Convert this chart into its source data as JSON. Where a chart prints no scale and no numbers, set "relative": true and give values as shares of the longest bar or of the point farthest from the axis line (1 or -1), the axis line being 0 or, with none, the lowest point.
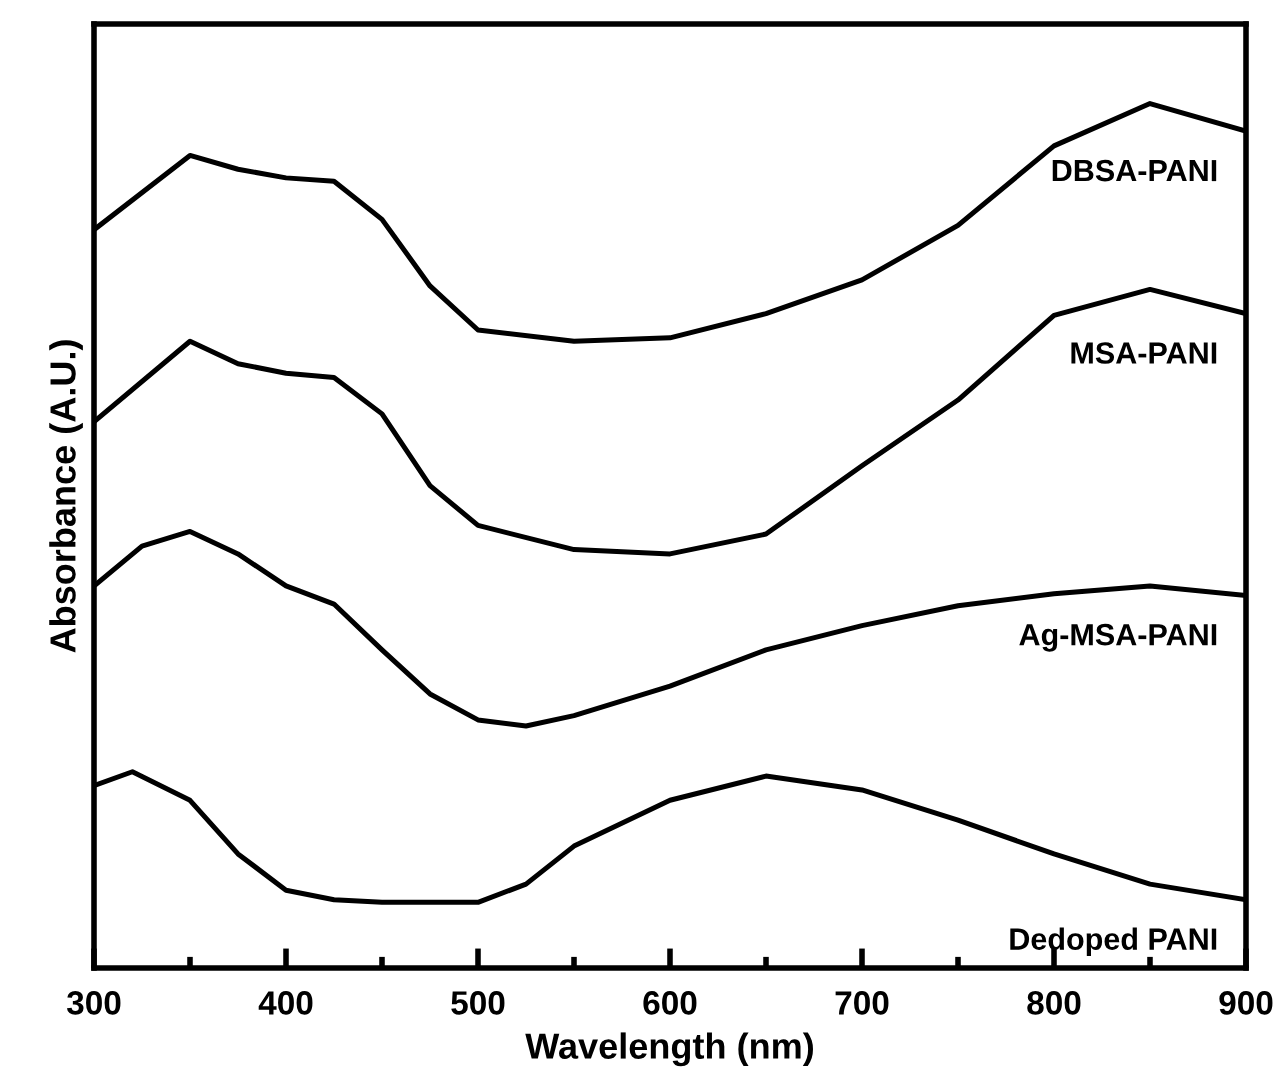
{
  "chart_data": {
    "type": "line",
    "relative": true,
    "xlabel": "Wavelength (nm)",
    "ylabel": "Absorbance (A.U.)",
    "xlim": [
      300,
      900
    ],
    "xticks": [
      300,
      {
        "value": 350,
        "label": null
      },
      400,
      {
        "value": 450,
        "label": null
      },
      500,
      {
        "value": 550,
        "label": null
      },
      600,
      {
        "value": 650,
        "label": null
      },
      700,
      {
        "value": 750,
        "label": null
      },
      800,
      {
        "value": 850,
        "label": null
      },
      900
    ],
    "grid": false,
    "legend": false,
    "marker": "none",
    "line_style": "solid",
    "series": [
      {
        "name": "DBSA-PANI",
        "color": "#000000",
        "x": [
          300,
          350,
          375,
          400,
          425,
          450,
          475,
          500,
          550,
          600,
          650,
          700,
          750,
          800,
          850,
          900
        ],
        "values": [
          0.854,
          0.94,
          0.924,
          0.914,
          0.91,
          0.866,
          0.789,
          0.738,
          0.725,
          0.729,
          0.757,
          0.796,
          0.859,
          0.951,
          1.0,
          0.968
        ]
      },
      {
        "name": "MSA-PANI",
        "color": "#000000",
        "x": [
          300,
          350,
          375,
          400,
          425,
          450,
          475,
          500,
          550,
          600,
          650,
          700,
          750,
          800,
          850,
          900
        ],
        "values": [
          0.632,
          0.725,
          0.699,
          0.688,
          0.683,
          0.641,
          0.558,
          0.512,
          0.484,
          0.479,
          0.502,
          0.581,
          0.657,
          0.755,
          0.785,
          0.757
        ]
      },
      {
        "name": "Ag-MSA-PANI",
        "color": "#000000",
        "x": [
          300,
          325,
          350,
          375,
          400,
          425,
          450,
          475,
          500,
          525,
          550,
          600,
          650,
          700,
          750,
          800,
          850,
          900
        ],
        "values": [
          0.442,
          0.488,
          0.505,
          0.479,
          0.442,
          0.421,
          0.368,
          0.317,
          0.287,
          0.28,
          0.292,
          0.326,
          0.368,
          0.396,
          0.419,
          0.433,
          0.442,
          0.431
        ]
      },
      {
        "name": "Dedoped PANI",
        "color": "#000000",
        "x": [
          300,
          320,
          350,
          375,
          400,
          425,
          450,
          500,
          525,
          550,
          600,
          650,
          700,
          750,
          800,
          850,
          900
        ],
        "values": [
          0.211,
          0.227,
          0.194,
          0.132,
          0.09,
          0.079,
          0.076,
          0.076,
          0.097,
          0.141,
          0.194,
          0.222,
          0.206,
          0.171,
          0.132,
          0.097,
          0.079
        ]
      }
    ]
  }
}
